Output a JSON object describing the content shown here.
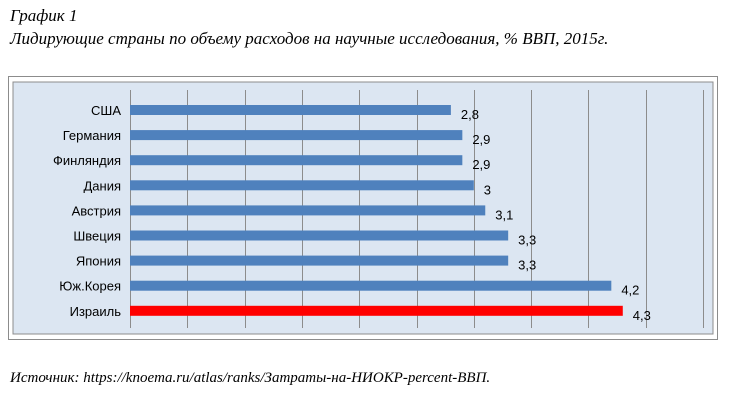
{
  "figure": {
    "label": "График 1",
    "title": "Лидирующие страны по объему расходов на научные исследования, % ВВП, 2015г.",
    "source": "Источник: https://knoema.ru/atlas/ranks/Затраты-на-НИОКР-percent-ВВП."
  },
  "colors": {
    "plot_background": "#dce6f2",
    "bar_default": "#4f81bd",
    "bar_highlight": "#ff0000",
    "gridline": "#8c8c8c"
  },
  "chart_data": {
    "type": "bar",
    "orientation": "horizontal",
    "title": "",
    "xlabel": "",
    "ylabel": "",
    "categories": [
      "США",
      "Германия",
      "Финляндия",
      "Дания",
      "Австрия",
      "Швеция",
      "Япония",
      "Юж.Корея",
      "Израиль"
    ],
    "values": [
      2.8,
      2.9,
      2.9,
      3.0,
      3.1,
      3.3,
      3.3,
      4.2,
      4.3
    ],
    "value_labels": [
      "2,8",
      "2,9",
      "2,9",
      "3",
      "3,1",
      "3,3",
      "3,3",
      "4,2",
      "4,3"
    ],
    "highlight_index": 8,
    "xlim": [
      0,
      5
    ],
    "x_tick_step": 0.5,
    "grid": "vertical",
    "x_tick_labels_visible": false,
    "legend": "none"
  }
}
